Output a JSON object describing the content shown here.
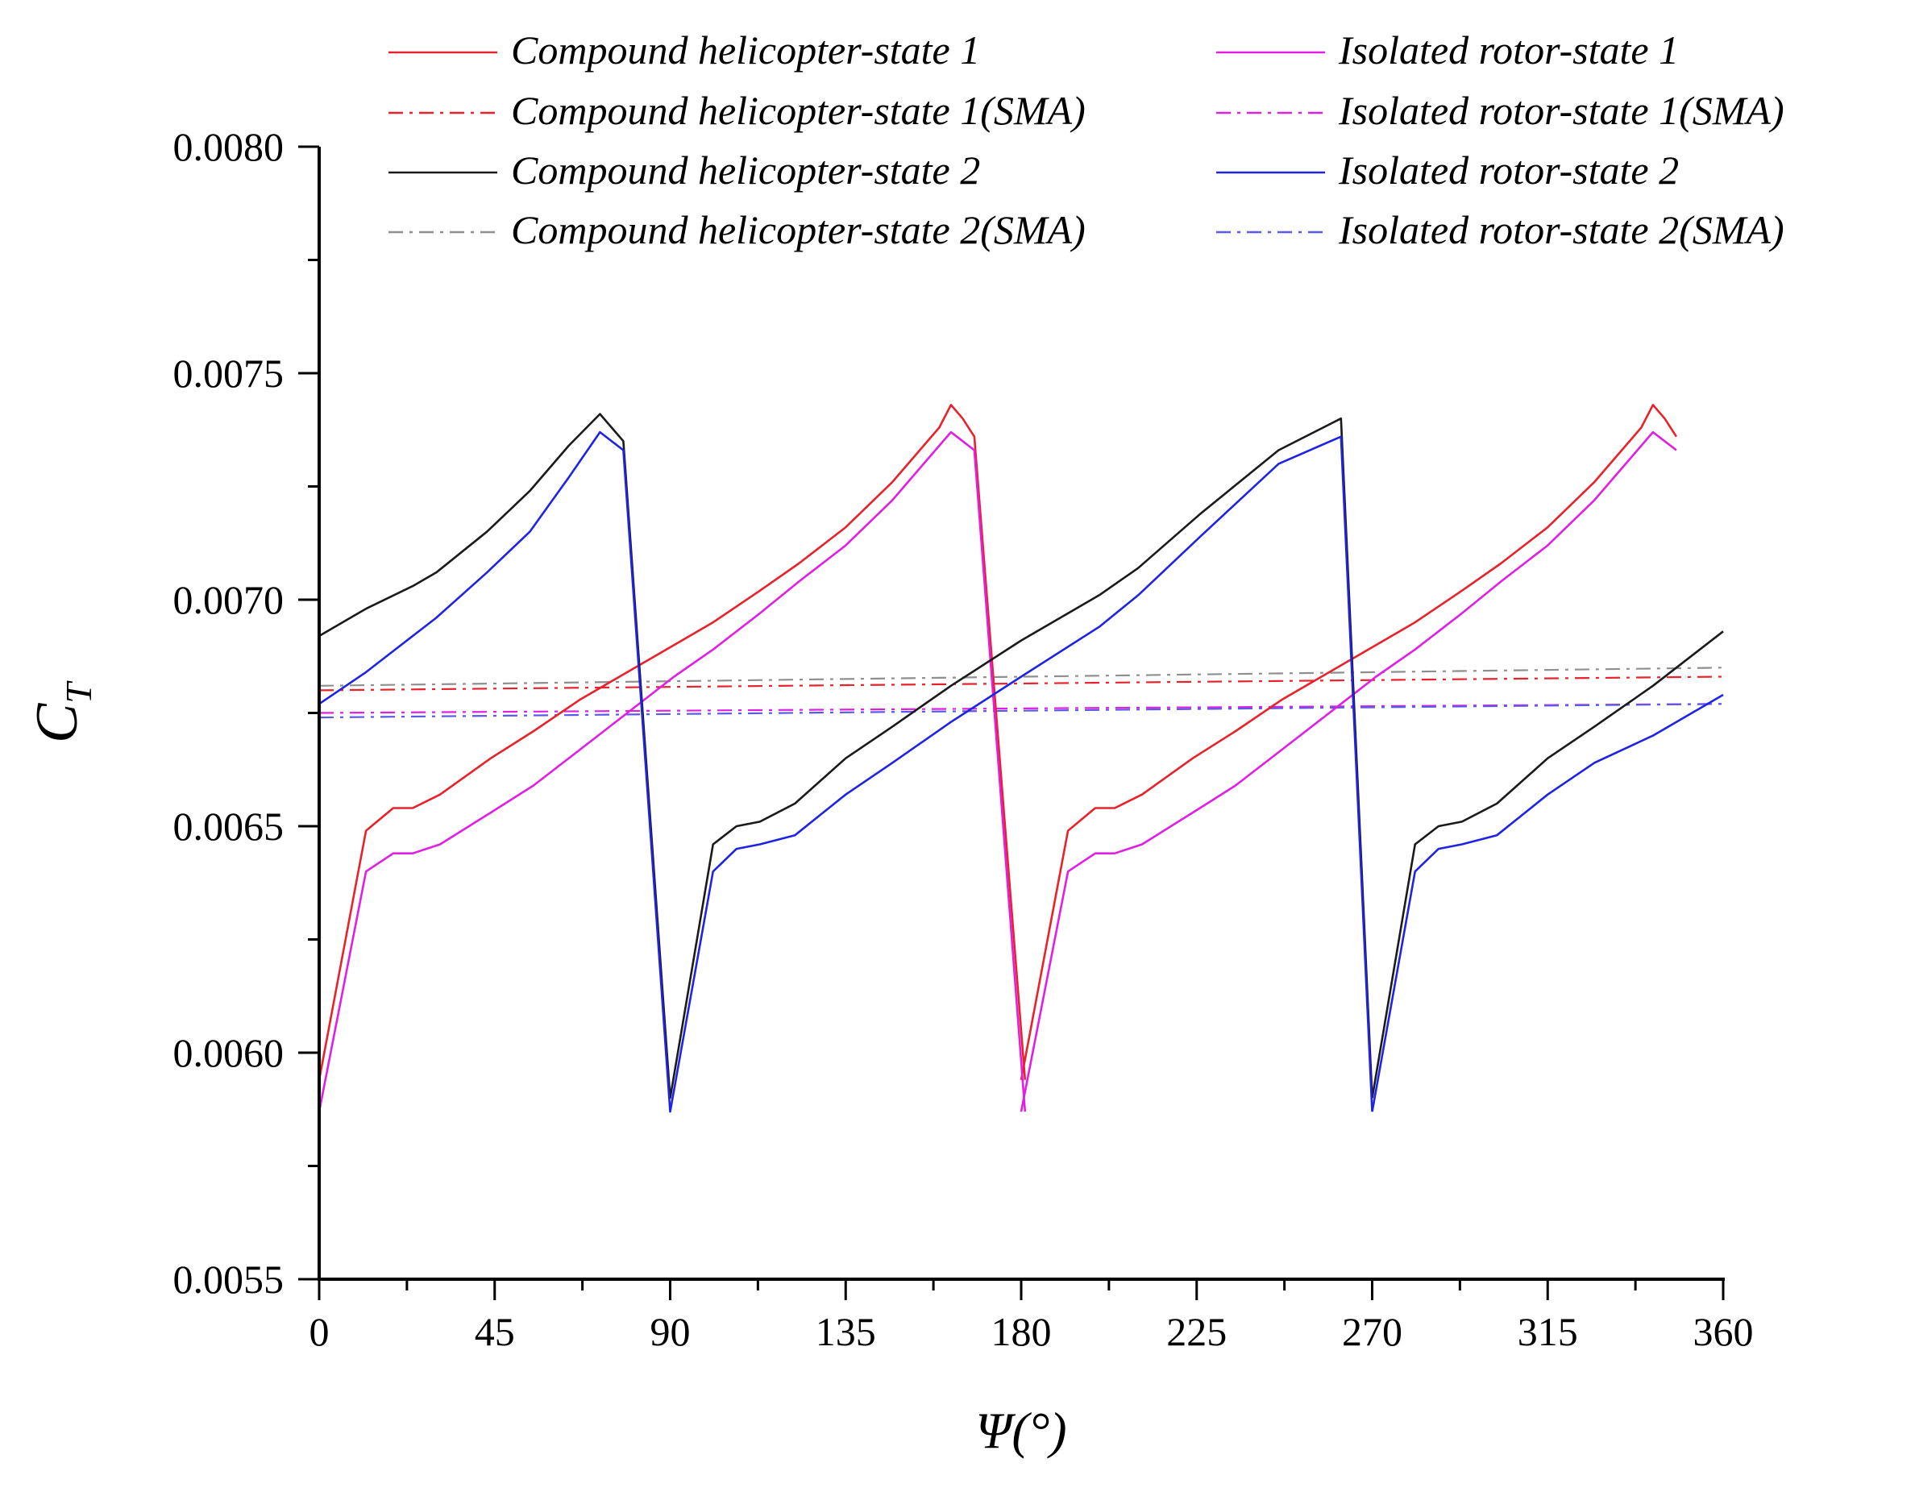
{
  "chart_data": {
    "type": "line",
    "title": "",
    "xlabel": "Ψ(°)",
    "ylabel_main": "C",
    "ylabel_sub": "T",
    "xlim": [
      0,
      360
    ],
    "ylim": [
      0.0055,
      0.008
    ],
    "xticks": [
      0,
      45,
      90,
      135,
      180,
      225,
      270,
      315,
      360
    ],
    "xtick_labels": [
      "0",
      "45",
      "90",
      "135",
      "180",
      "225",
      "270",
      "315",
      "360"
    ],
    "yticks": [
      0.0055,
      0.006,
      0.0065,
      0.007,
      0.0075,
      0.008
    ],
    "ytick_labels": [
      "0.0055",
      "0.0060",
      "0.0065",
      "0.0070",
      "0.0075",
      "0.0080"
    ],
    "legend_position": "top",
    "series": [
      {
        "name": "Compound helicopter-state 1",
        "color": "#e8222a",
        "dash": "solid",
        "x": [
          0,
          12,
          19,
          24,
          31,
          44,
          55,
          67,
          79,
          91,
          101,
          113,
          123,
          135,
          147,
          159,
          162,
          165,
          168,
          181
        ],
        "y": [
          0.00594,
          0.00649,
          0.00654,
          0.00654,
          0.00657,
          0.00665,
          0.00671,
          0.00678,
          0.00684,
          0.0069,
          0.00695,
          0.00702,
          0.00708,
          0.00716,
          0.00726,
          0.00738,
          0.00743,
          0.0074,
          0.00736,
          0.00594
        ]
      },
      {
        "name": "Isolated rotor-state 1",
        "color": "#e020e0",
        "dash": "solid",
        "x": [
          0,
          12,
          19,
          24,
          31,
          44,
          55,
          67,
          79,
          91,
          101,
          113,
          123,
          135,
          147,
          159,
          162,
          165,
          168,
          181
        ],
        "y": [
          0.00587,
          0.0064,
          0.00644,
          0.00644,
          0.00646,
          0.00653,
          0.00659,
          0.00667,
          0.00675,
          0.00683,
          0.00689,
          0.00697,
          0.00704,
          0.00712,
          0.00722,
          0.00734,
          0.00737,
          0.00735,
          0.00733,
          0.00587
        ]
      },
      {
        "name": "Compound helicopter-state 2",
        "color": "#1a1a1a",
        "dash": "solid",
        "x": [
          0,
          12,
          24,
          30,
          43,
          54,
          64,
          72,
          78,
          90,
          101,
          107,
          113,
          122,
          135,
          147,
          162,
          180,
          200,
          210,
          226,
          246,
          262,
          270
        ],
        "y": [
          0.00692,
          0.00698,
          0.00703,
          0.00706,
          0.00715,
          0.00724,
          0.00734,
          0.00741,
          0.00735,
          0.0059,
          0.00646,
          0.0065,
          0.00651,
          0.00655,
          0.00665,
          0.00672,
          0.00681,
          0.00691,
          0.00701,
          0.00707,
          0.00719,
          0.00733,
          0.0074,
          0.0059
        ]
      },
      {
        "name": "Isolated rotor-state 2",
        "color": "#1e23e6",
        "dash": "solid",
        "x": [
          0,
          12,
          24,
          30,
          43,
          54,
          64,
          72,
          78,
          90,
          101,
          107,
          113,
          122,
          135,
          147,
          162,
          180,
          200,
          210,
          226,
          246,
          262,
          270
        ],
        "y": [
          0.00677,
          0.00684,
          0.00692,
          0.00696,
          0.00706,
          0.00715,
          0.00727,
          0.00737,
          0.00733,
          0.00587,
          0.0064,
          0.00645,
          0.00646,
          0.00648,
          0.00657,
          0.00664,
          0.00673,
          0.00683,
          0.00694,
          0.00701,
          0.00714,
          0.0073,
          0.00736,
          0.00587
        ]
      },
      {
        "name": "Compound helicopter-state 1(SMA)",
        "color": "#e8222a",
        "dash": "dashdot",
        "x": [
          0,
          360
        ],
        "y": [
          0.0068,
          0.00683
        ]
      },
      {
        "name": "Isolated rotor-state 1(SMA)",
        "color": "#e020e0",
        "dash": "dashdot",
        "x": [
          0,
          360
        ],
        "y": [
          0.00675,
          0.00677
        ]
      },
      {
        "name": "Compound helicopter-state 2(SMA)",
        "color": "#8f8f8f",
        "dash": "dashdot",
        "x": [
          0,
          360
        ],
        "y": [
          0.00681,
          0.00685
        ]
      },
      {
        "name": "Isolated rotor-state 2(SMA)",
        "color": "#5a5ae6",
        "dash": "dashdot",
        "x": [
          0,
          360
        ],
        "y": [
          0.00674,
          0.00677
        ]
      }
    ],
    "legend": [
      {
        "label": "Compound helicopter-state 1",
        "series": 0
      },
      {
        "label": "Isolated rotor-state 1",
        "series": 1
      },
      {
        "label": "Compound helicopter-state 1(SMA)",
        "series": 4
      },
      {
        "label": "Isolated rotor-state 1(SMA)",
        "series": 5
      },
      {
        "label": "Compound helicopter-state 2",
        "series": 2
      },
      {
        "label": "Isolated rotor-state 2",
        "series": 3
      },
      {
        "label": "Compound helicopter-state 2(SMA)",
        "series": 6
      },
      {
        "label": "Isolated rotor-state 2(SMA)",
        "series": 7
      }
    ]
  }
}
